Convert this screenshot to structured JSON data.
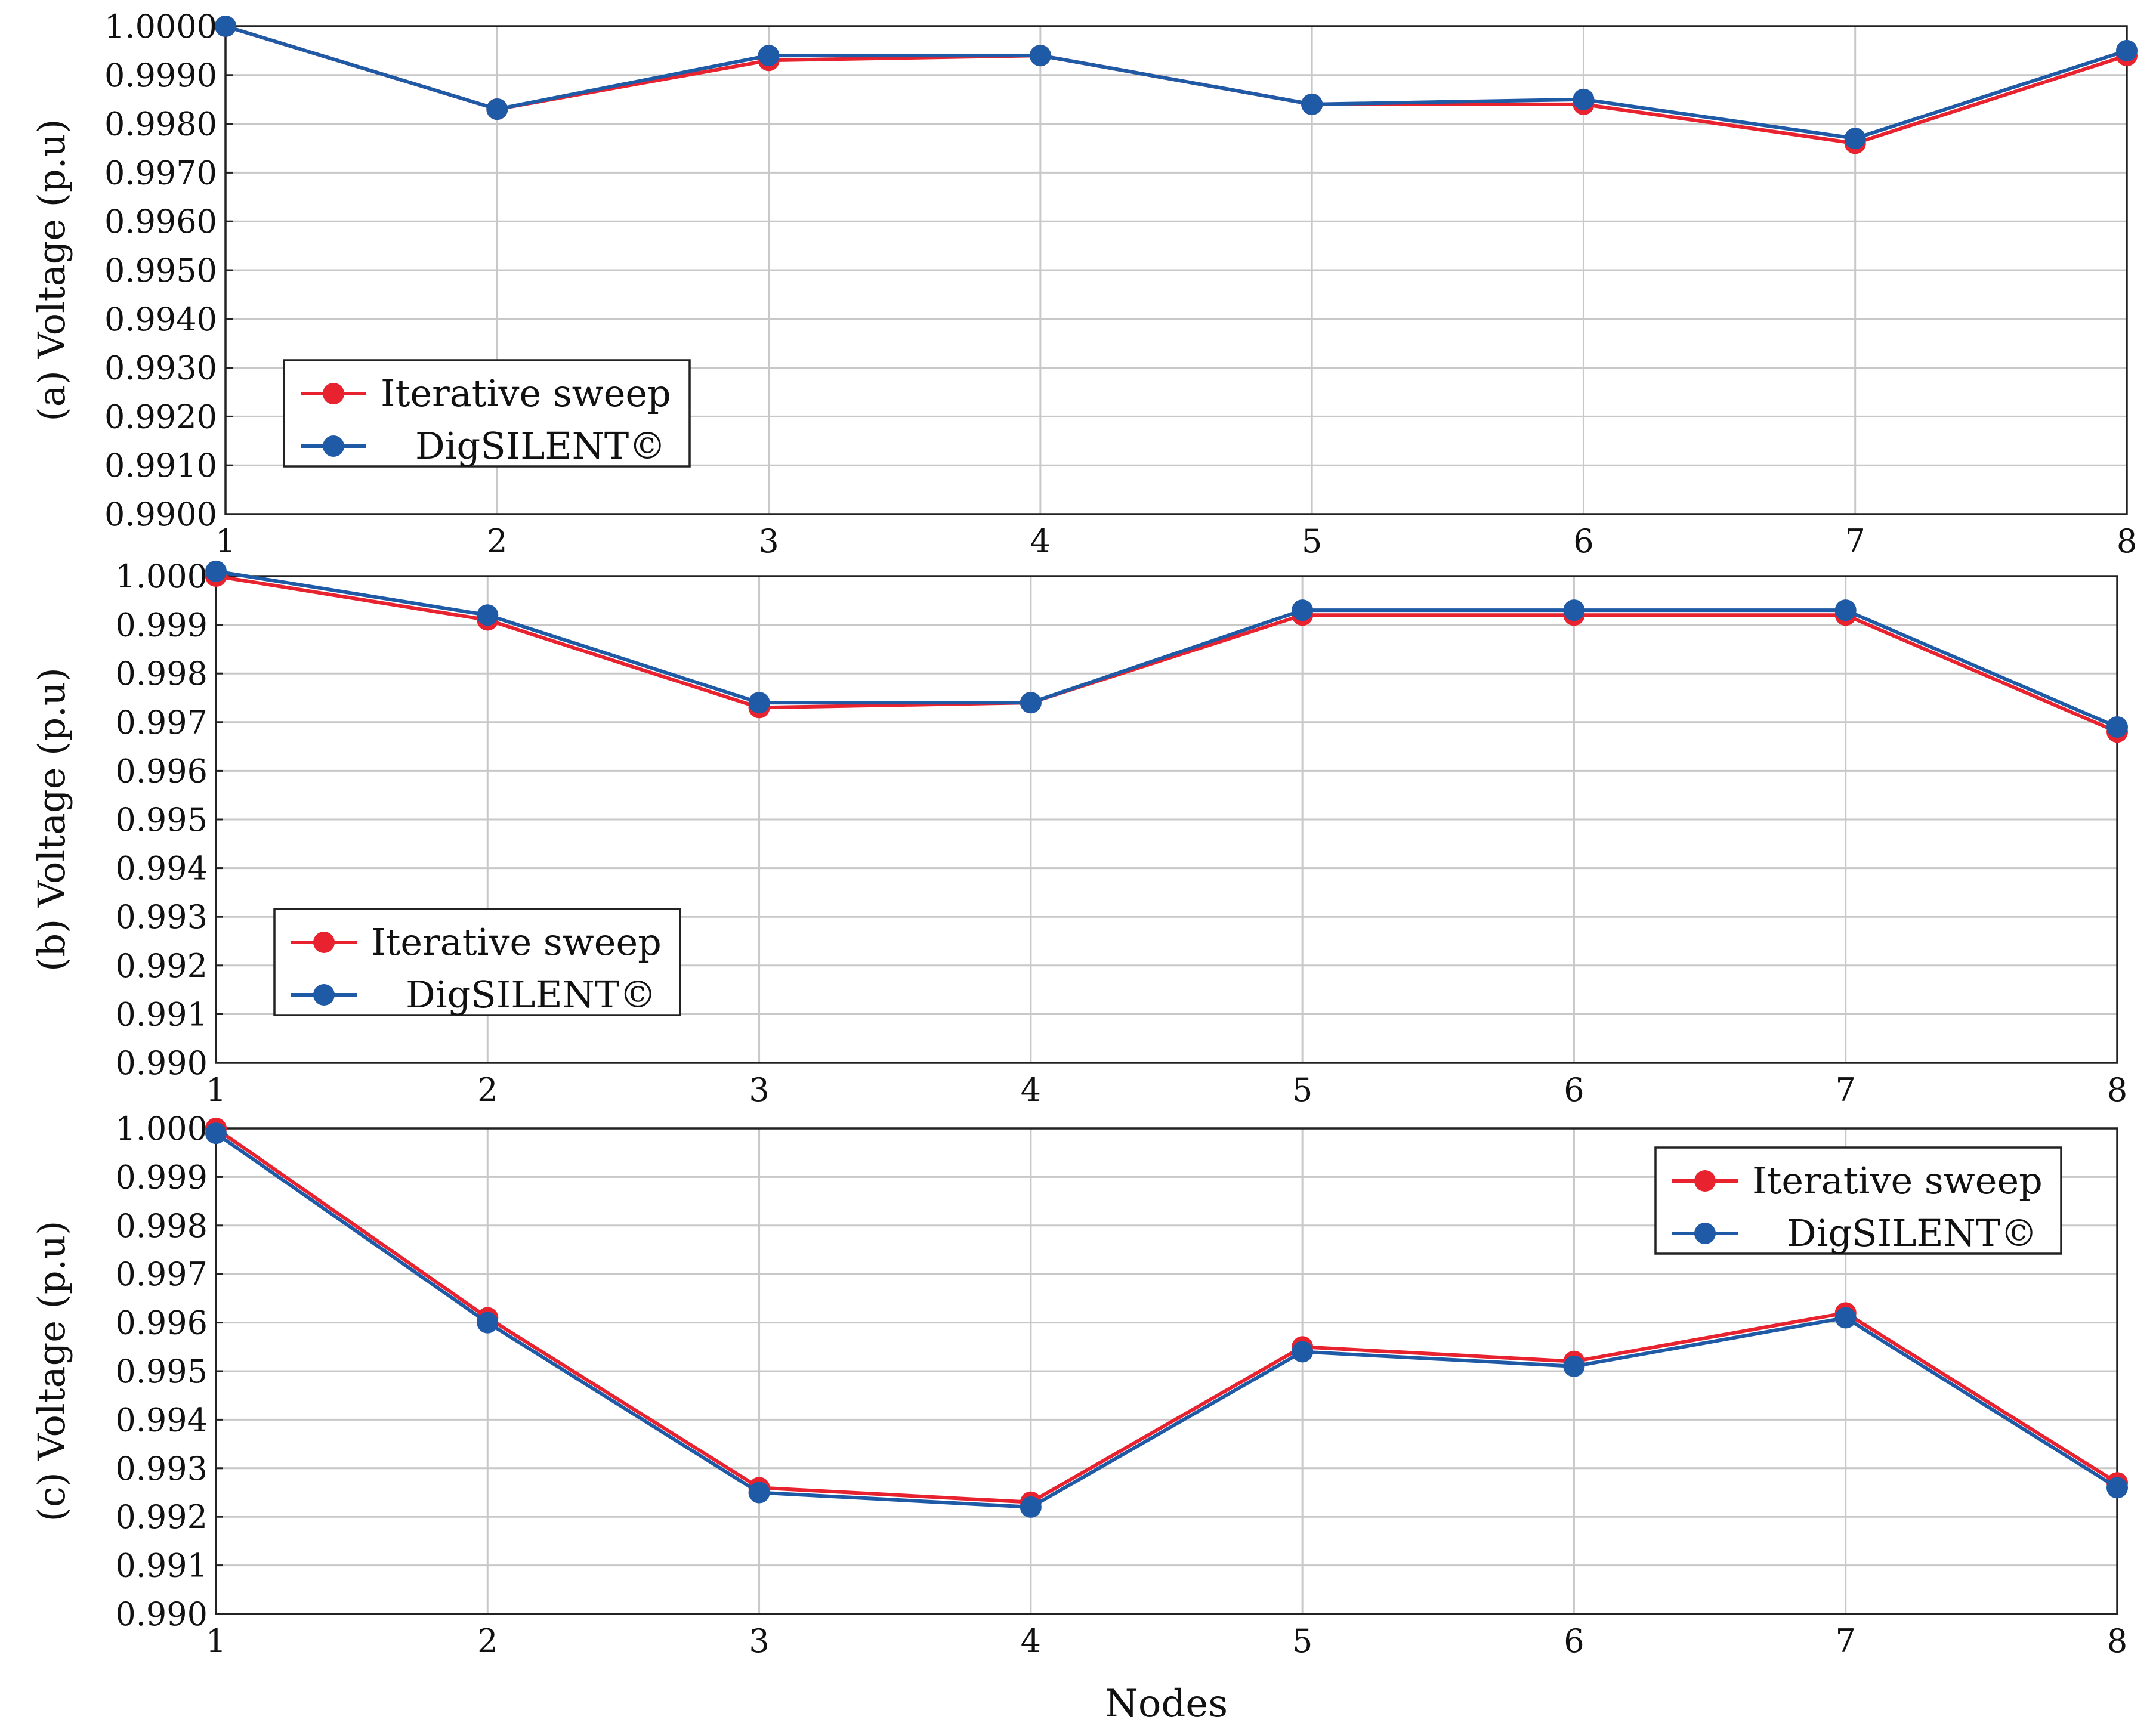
{
  "figure": {
    "xlabel": "Nodes",
    "colors": {
      "iterative": "#e8222e",
      "digsilent": "#1f5aa6",
      "grid": "#c8c8c8",
      "axis": "#222222"
    }
  },
  "legend_labels": {
    "iterative": "Iterative sweep",
    "digsilent": "DigSILENT©"
  },
  "chart_data": [
    {
      "type": "line",
      "id": "a",
      "ylabel": "(a) Voltage (p.u)",
      "x": [
        1,
        2,
        3,
        4,
        5,
        6,
        7,
        8
      ],
      "xlim": [
        1,
        8
      ],
      "ylim": [
        0.99,
        1.0
      ],
      "yticks": [
        "0.9900",
        "0.9910",
        "0.9920",
        "0.9930",
        "0.9940",
        "0.9950",
        "0.9960",
        "0.9970",
        "0.9980",
        "0.9990",
        "1.0000"
      ],
      "legend_position": "bottom-left",
      "grid": true,
      "series": [
        {
          "name": "Iterative sweep",
          "key": "iterative",
          "values": [
            1.0,
            0.9983,
            0.9993,
            0.9994,
            0.9984,
            0.9984,
            0.9976,
            0.9994
          ]
        },
        {
          "name": "DigSILENT©",
          "key": "digsilent",
          "values": [
            1.0,
            0.9983,
            0.9994,
            0.9994,
            0.9984,
            0.9985,
            0.9977,
            0.9995
          ]
        }
      ]
    },
    {
      "type": "line",
      "id": "b",
      "ylabel": "(b) Voltage (p.u)",
      "x": [
        1,
        2,
        3,
        4,
        5,
        6,
        7,
        8
      ],
      "xlim": [
        1,
        8
      ],
      "ylim": [
        0.99,
        1.0
      ],
      "yticks": [
        "0.990",
        "0.991",
        "0.992",
        "0.993",
        "0.994",
        "0.995",
        "0.996",
        "0.997",
        "0.998",
        "0.999",
        "1.000"
      ],
      "legend_position": "bottom-left",
      "grid": true,
      "series": [
        {
          "name": "Iterative sweep",
          "key": "iterative",
          "values": [
            1.0,
            0.9991,
            0.9973,
            0.9974,
            0.9992,
            0.9992,
            0.9992,
            0.9968
          ]
        },
        {
          "name": "DigSILENT©",
          "key": "digsilent",
          "values": [
            1.0001,
            0.9992,
            0.9974,
            0.9974,
            0.9993,
            0.9993,
            0.9993,
            0.9969
          ]
        }
      ]
    },
    {
      "type": "line",
      "id": "c",
      "ylabel": "(c) Voltage (p.u)",
      "x": [
        1,
        2,
        3,
        4,
        5,
        6,
        7,
        8
      ],
      "xlim": [
        1,
        8
      ],
      "ylim": [
        0.99,
        1.0
      ],
      "yticks": [
        "0.990",
        "0.991",
        "0.992",
        "0.993",
        "0.994",
        "0.995",
        "0.996",
        "0.997",
        "0.998",
        "0.999",
        "1.000"
      ],
      "legend_position": "top-right",
      "grid": true,
      "series": [
        {
          "name": "Iterative sweep",
          "key": "iterative",
          "values": [
            1.0,
            0.9961,
            0.9926,
            0.9923,
            0.9955,
            0.9952,
            0.9962,
            0.9927
          ]
        },
        {
          "name": "DigSILENT©",
          "key": "digsilent",
          "values": [
            0.9999,
            0.996,
            0.9925,
            0.9922,
            0.9954,
            0.9951,
            0.9961,
            0.9926
          ]
        }
      ]
    }
  ]
}
